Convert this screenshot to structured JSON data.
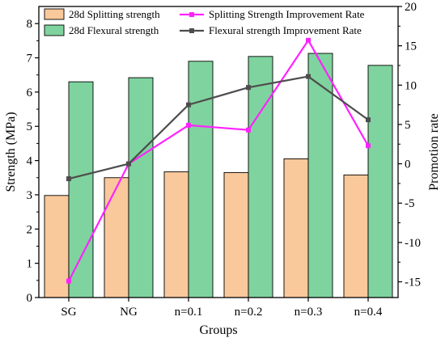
{
  "chart_data": {
    "type": "bar",
    "xlabel": "Groups",
    "ylabel": "Strength (MPa)",
    "y2label": "Promotion rate",
    "categories": [
      "SG",
      "NG",
      "n=0.1",
      "n=0.2",
      "n=0.3",
      "n=0.4"
    ],
    "ylim": [
      0,
      8.5
    ],
    "y2lim": [
      -17,
      20
    ],
    "yticks": [
      "0",
      "1",
      "2",
      "3",
      "4",
      "5",
      "6",
      "7",
      "8"
    ],
    "y2ticks": [
      "-15",
      "-10",
      "-5",
      "0",
      "5",
      "10",
      "15",
      "20"
    ],
    "bar_series": [
      {
        "name": "28d Splitting strength",
        "color": "#f9c89b",
        "values": [
          2.98,
          3.5,
          3.67,
          3.65,
          4.05,
          3.58
        ]
      },
      {
        "name": "28d Flexural strength",
        "color": "#7fd39e",
        "values": [
          6.3,
          6.42,
          6.9,
          7.04,
          7.13,
          6.78
        ]
      }
    ],
    "line_series": [
      {
        "name": "Splitting Strength Improvement Rate",
        "axis": "right",
        "color": "#ff22ff",
        "marker": "square",
        "values": [
          -14.9,
          0.0,
          4.9,
          4.3,
          15.7,
          2.3
        ]
      },
      {
        "name": "Flexural strength Improvement Rate",
        "axis": "right",
        "color": "#4d4d4d",
        "marker": "square",
        "values": [
          -1.9,
          0.0,
          7.5,
          9.7,
          11.1,
          5.6
        ]
      }
    ],
    "legend_position": "top"
  }
}
